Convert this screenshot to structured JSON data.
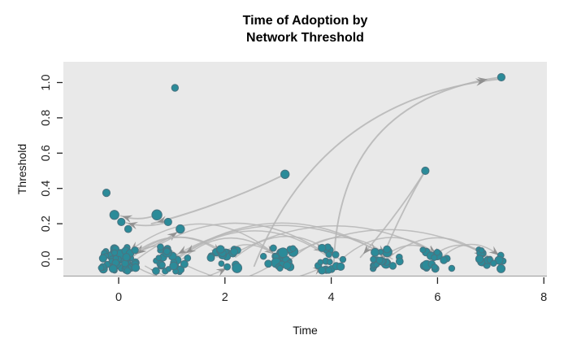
{
  "figure": {
    "title_line1": "Time of Adoption by",
    "title_line2": "Network Threshold",
    "xlabel": "Time",
    "ylabel": "Threshold"
  },
  "chart_data": {
    "type": "scatter",
    "title": "Time of Adoption by Network Threshold",
    "xlabel": "Time",
    "ylabel": "Threshold",
    "xlim": [
      -1.04,
      8.06
    ],
    "ylim": [
      -0.095,
      1.12
    ],
    "x_ticks": [
      "0",
      "2",
      "4",
      "6",
      "8"
    ],
    "x_tick_values": [
      0,
      2,
      4,
      6,
      8
    ],
    "y_ticks": [
      "0.0",
      "0.2",
      "0.4",
      "0.6",
      "0.8",
      "1.0"
    ],
    "y_tick_values": [
      0.0,
      0.2,
      0.4,
      0.6,
      0.8,
      1.0
    ],
    "grid": false,
    "legend": null,
    "adopter_clusters": [
      {
        "time": 0,
        "threshold": 0,
        "count": 55,
        "x_jitter": 0.33,
        "y_jitter": 0.068,
        "seed": 11
      },
      {
        "time": 1,
        "threshold": 0,
        "count": 26,
        "x_jitter": 0.3,
        "y_jitter": 0.075,
        "seed": 22
      },
      {
        "time": 2,
        "threshold": 0,
        "count": 20,
        "x_jitter": 0.3,
        "y_jitter": 0.06,
        "seed": 33
      },
      {
        "time": 3,
        "threshold": 0,
        "count": 23,
        "x_jitter": 0.3,
        "y_jitter": 0.062,
        "seed": 44
      },
      {
        "time": 4,
        "threshold": 0,
        "count": 18,
        "x_jitter": 0.28,
        "y_jitter": 0.068,
        "seed": 55
      },
      {
        "time": 5,
        "threshold": 0,
        "count": 18,
        "x_jitter": 0.3,
        "y_jitter": 0.055,
        "seed": 66
      },
      {
        "time": 6,
        "threshold": 0,
        "count": 15,
        "x_jitter": 0.28,
        "y_jitter": 0.06,
        "seed": 77
      },
      {
        "time": 7,
        "threshold": 0,
        "count": 16,
        "x_jitter": 0.28,
        "y_jitter": 0.055,
        "seed": 88
      }
    ],
    "outlier_points": [
      {
        "time": -0.23,
        "threshold": 0.375,
        "size": 4.6
      },
      {
        "time": -0.08,
        "threshold": 0.25,
        "size": 5.6
      },
      {
        "time": 0.05,
        "threshold": 0.21,
        "size": 4.6
      },
      {
        "time": 0.18,
        "threshold": 0.17,
        "size": 4.4
      },
      {
        "time": 0.72,
        "threshold": 0.25,
        "size": 6.2
      },
      {
        "time": 0.93,
        "threshold": 0.21,
        "size": 4.6
      },
      {
        "time": 1.16,
        "threshold": 0.17,
        "size": 5.2
      },
      {
        "time": 1.06,
        "threshold": 0.97,
        "size": 4.2
      },
      {
        "time": 3.13,
        "threshold": 0.48,
        "size": 5.2
      },
      {
        "time": 5.77,
        "threshold": 0.5,
        "size": 4.6
      },
      {
        "time": 7.2,
        "threshold": 1.03,
        "size": 4.6
      }
    ],
    "edges": [
      [
        3.13,
        0.48,
        0.62,
        0.2,
        0.05,
        2.0
      ],
      [
        5.77,
        0.5,
        4.55,
        0.01,
        0.04,
        1.8
      ],
      [
        5.77,
        0.5,
        4.9,
        -0.04,
        -0.04,
        1.8
      ],
      [
        4.05,
        -0.02,
        7.18,
        1.03,
        0.42,
        1.9
      ],
      [
        2.55,
        -0.04,
        7.17,
        1.02,
        0.3,
        1.9
      ],
      [
        0.72,
        0.25,
        0.04,
        0.245,
        0.18,
        1.8
      ],
      [
        0.93,
        0.21,
        0.14,
        0.205,
        0.15,
        1.8
      ],
      [
        0.1,
        0.02,
        1.14,
        0.16,
        -0.1,
        1.8
      ],
      [
        1.15,
        0.01,
        0.3,
        0.02,
        -0.45,
        1.5
      ],
      [
        2.05,
        0.02,
        0.25,
        0.01,
        -0.4,
        1.5
      ],
      [
        3.0,
        0.01,
        0.1,
        0.02,
        -0.42,
        1.5
      ],
      [
        0.2,
        0.01,
        2.0,
        0.02,
        0.4,
        1.5
      ],
      [
        1.2,
        0.0,
        3.0,
        0.01,
        0.42,
        1.5
      ],
      [
        0.35,
        0.0,
        4.0,
        0.01,
        0.36,
        1.5
      ],
      [
        2.2,
        0.01,
        4.15,
        0.0,
        0.42,
        1.5
      ],
      [
        1.05,
        0.0,
        5.05,
        0.01,
        0.33,
        1.5
      ],
      [
        3.25,
        0.0,
        5.1,
        0.01,
        0.42,
        1.5
      ],
      [
        4.2,
        0.0,
        6.05,
        0.01,
        0.42,
        1.5
      ],
      [
        2.0,
        0.0,
        6.15,
        0.0,
        0.3,
        1.5
      ],
      [
        5.05,
        0.0,
        6.95,
        0.0,
        0.42,
        1.5
      ],
      [
        3.1,
        0.0,
        7.05,
        0.0,
        0.28,
        1.5
      ],
      [
        6.05,
        0.0,
        7.2,
        0.01,
        0.45,
        1.5
      ],
      [
        5.15,
        0.0,
        0.95,
        0.0,
        -0.3,
        1.5
      ],
      [
        4.0,
        0.0,
        1.15,
        0.01,
        -0.36,
        1.5
      ],
      [
        6.1,
        0.0,
        4.95,
        0.0,
        -0.45,
        1.5
      ],
      [
        7.0,
        0.0,
        5.85,
        0.0,
        -0.45,
        1.5
      ],
      [
        0.25,
        -0.03,
        2.1,
        -0.04,
        -0.3,
        1.4
      ],
      [
        1.3,
        -0.04,
        3.95,
        -0.03,
        -0.25,
        1.4
      ],
      [
        2.9,
        -0.03,
        0.5,
        -0.04,
        0.3,
        1.4
      ],
      [
        2.95,
        0.02,
        1.85,
        0.01,
        -0.4,
        1.5
      ]
    ],
    "colors": {
      "vertex_fill": "#2b8b99",
      "vertex_stroke": "#4a7380",
      "edge": "#b5b5b5",
      "arrow": "#8d8d8d",
      "plot_bg": "#e9e9e9",
      "plot_border": "#9b9b9b",
      "axis": "#222222"
    }
  }
}
